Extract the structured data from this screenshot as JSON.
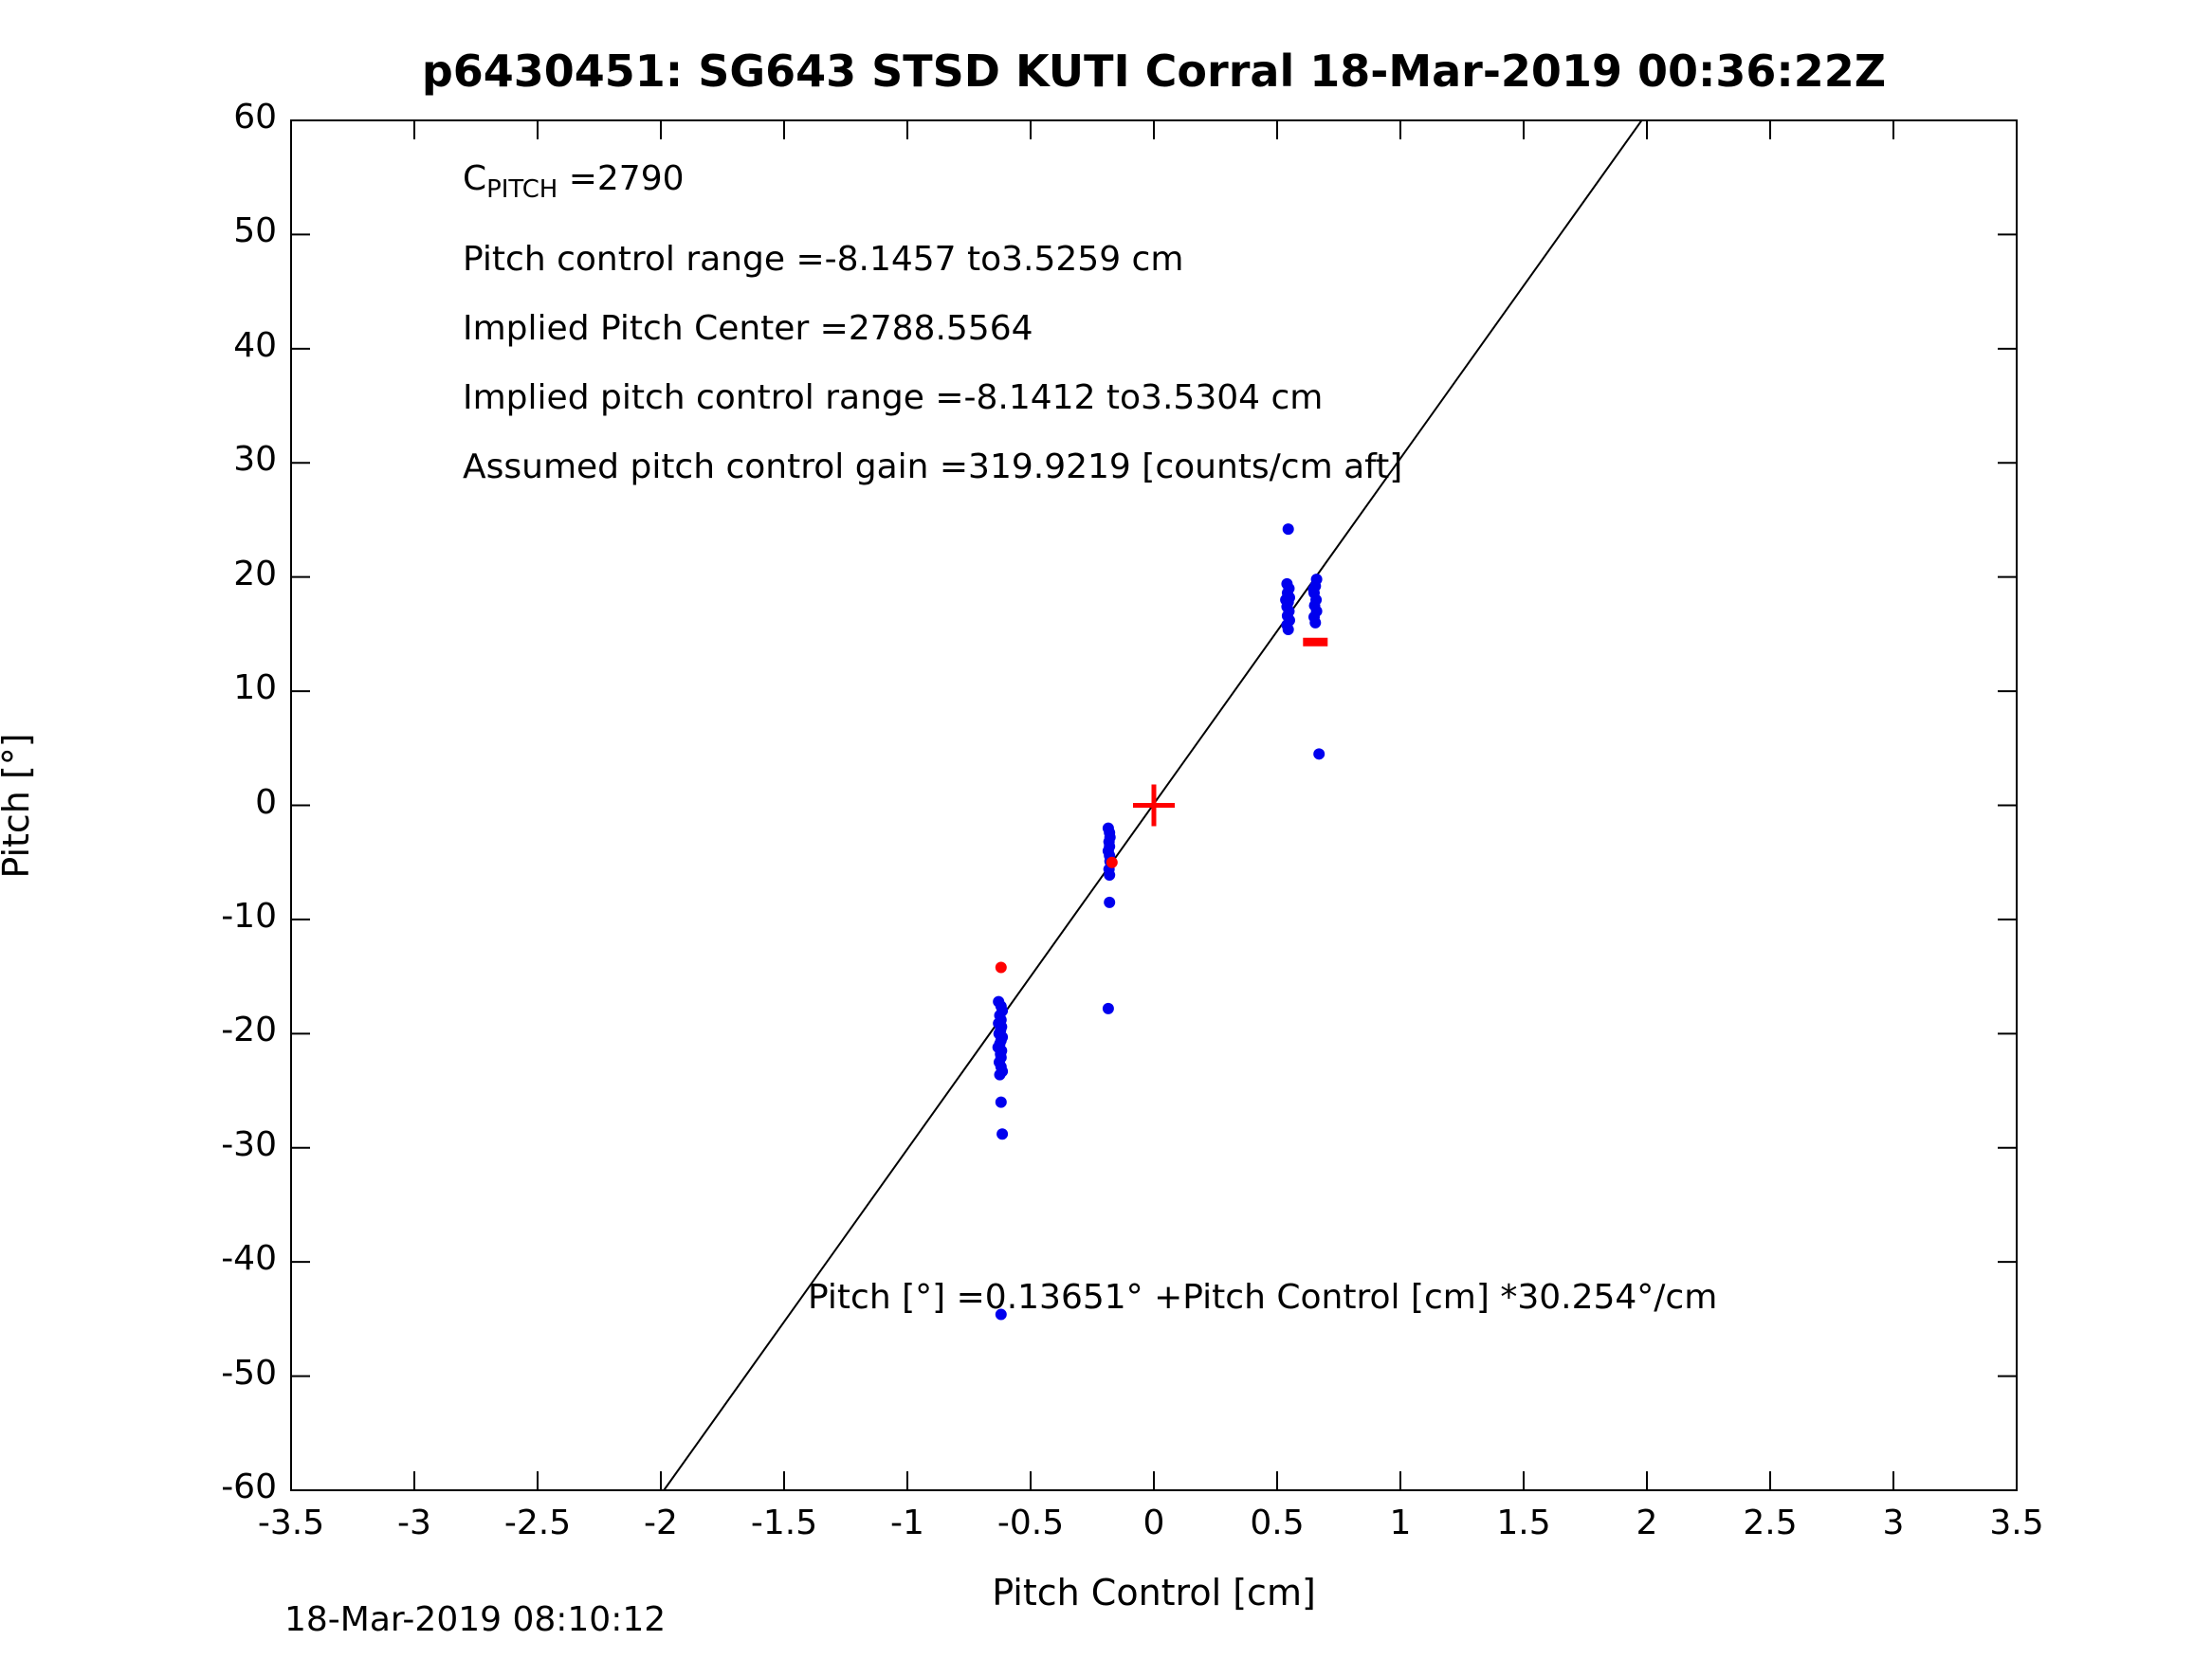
{
  "title": "p6430451: SG643 STSD KUTI Corral 18-Mar-2019 00:36:22Z",
  "timestamp": "18-Mar-2019 08:10:12",
  "annotations": {
    "c_pitch_label": "C",
    "c_pitch_sub": "PITCH",
    "c_pitch_value": " =2790",
    "pitch_control_range": "Pitch control range =-8.1457 to3.5259 cm",
    "implied_pitch_center": "Implied Pitch Center =2788.5564",
    "implied_pitch_control_range": "Implied pitch control range =-8.1412 to3.5304 cm",
    "assumed_gain": "Assumed pitch control gain =319.9219 [counts/cm aft]",
    "fit_equation": "Pitch [°] =0.13651° +Pitch Control [cm] *30.254°/cm"
  },
  "colors": {
    "axis": "#000000",
    "fit_line": "#000000",
    "samples": "#0000ee",
    "reference": "#ff0000",
    "background": "#ffffff"
  },
  "chart_data": {
    "type": "scatter",
    "title": "p6430451: SG643 STSD KUTI Corral 18-Mar-2019 00:36:22Z",
    "xlabel": "Pitch Control [cm]",
    "ylabel": "Pitch [°]",
    "xlim": [
      -3.5,
      3.5
    ],
    "ylim": [
      -60,
      60
    ],
    "grid": false,
    "box": true,
    "xticks": [
      -3.5,
      -3,
      -2.5,
      -2,
      -1.5,
      -1,
      -0.5,
      0,
      0.5,
      1,
      1.5,
      2,
      2.5,
      3,
      3.5
    ],
    "xtick_labels": [
      "-3.5",
      "-3",
      "-2.5",
      "-2",
      "-1.5",
      "-1",
      "-0.5",
      "0",
      "0.5",
      "1",
      "1.5",
      "2",
      "2.5",
      "3",
      "3.5"
    ],
    "yticks": [
      -60,
      -50,
      -40,
      -30,
      -20,
      -10,
      0,
      10,
      20,
      30,
      40,
      50,
      60
    ],
    "ytick_labels": [
      "-60",
      "-50",
      "-40",
      "-30",
      "-20",
      "-10",
      "0",
      "10",
      "20",
      "30",
      "40",
      "50",
      "60"
    ],
    "fit_line": {
      "intercept_deg": 0.13651,
      "slope_deg_per_cm": 30.254
    },
    "series": [
      {
        "name": "pitch-samples",
        "marker": "dot",
        "color": "#0000ee",
        "points": [
          [
            -0.63,
            -17.2
          ],
          [
            -0.62,
            -17.6
          ],
          [
            -0.615,
            -18.0
          ],
          [
            -0.625,
            -18.4
          ],
          [
            -0.62,
            -18.8
          ],
          [
            -0.63,
            -19.1
          ],
          [
            -0.618,
            -19.4
          ],
          [
            -0.622,
            -19.7
          ],
          [
            -0.628,
            -20.0
          ],
          [
            -0.615,
            -20.3
          ],
          [
            -0.62,
            -20.6
          ],
          [
            -0.625,
            -20.9
          ],
          [
            -0.632,
            -21.2
          ],
          [
            -0.618,
            -21.5
          ],
          [
            -0.622,
            -21.8
          ],
          [
            -0.62,
            -22.1
          ],
          [
            -0.627,
            -22.5
          ],
          [
            -0.62,
            -22.9
          ],
          [
            -0.615,
            -23.3
          ],
          [
            -0.625,
            -23.6
          ],
          [
            -0.62,
            -26.0
          ],
          [
            -0.615,
            -28.8
          ],
          [
            -0.62,
            -44.6
          ],
          [
            -0.185,
            -2.0
          ],
          [
            -0.18,
            -2.4
          ],
          [
            -0.178,
            -2.8
          ],
          [
            -0.182,
            -3.2
          ],
          [
            -0.18,
            -3.6
          ],
          [
            -0.185,
            -4.0
          ],
          [
            -0.18,
            -4.4
          ],
          [
            -0.178,
            -4.9
          ],
          [
            -0.182,
            -5.6
          ],
          [
            -0.18,
            -6.1
          ],
          [
            -0.18,
            -8.5
          ],
          [
            -0.185,
            -17.8
          ],
          [
            0.545,
            15.4
          ],
          [
            0.54,
            15.8
          ],
          [
            0.55,
            16.2
          ],
          [
            0.542,
            16.6
          ],
          [
            0.548,
            17.0
          ],
          [
            0.54,
            17.4
          ],
          [
            0.545,
            17.8
          ],
          [
            0.55,
            18.2
          ],
          [
            0.542,
            18.6
          ],
          [
            0.548,
            19.0
          ],
          [
            0.54,
            19.4
          ],
          [
            0.535,
            18.0
          ],
          [
            0.545,
            24.2
          ],
          [
            0.655,
            16.0
          ],
          [
            0.65,
            16.5
          ],
          [
            0.66,
            17.0
          ],
          [
            0.652,
            17.5
          ],
          [
            0.658,
            18.0
          ],
          [
            0.65,
            18.6
          ],
          [
            0.655,
            19.2
          ],
          [
            0.66,
            19.8
          ],
          [
            0.648,
            18.9
          ],
          [
            0.67,
            4.5
          ]
        ]
      },
      {
        "name": "reference-markers",
        "color": "#ff0000",
        "markers": [
          {
            "type": "plus",
            "x": 0,
            "y": 0
          },
          {
            "type": "dash",
            "x": 0.655,
            "y": 14.3,
            "half_width_cm": 0.05
          },
          {
            "type": "dot",
            "x": -0.17,
            "y": -5.0
          },
          {
            "type": "dot",
            "x": -0.62,
            "y": -14.2
          }
        ]
      }
    ]
  }
}
